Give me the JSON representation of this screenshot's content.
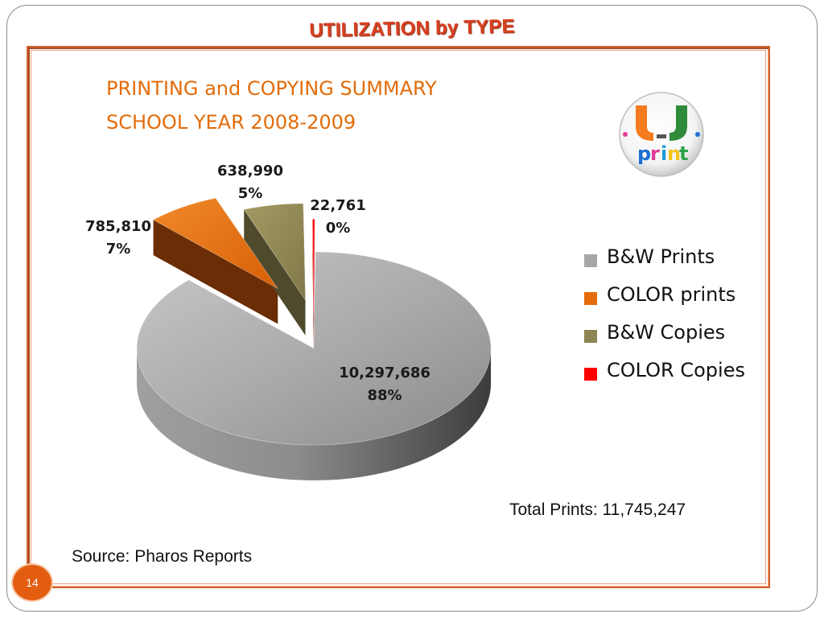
{
  "slide": {
    "title": "UTILIZATION by TYPE",
    "page_number": "14",
    "total_prints": "Total Prints:  11,745,247",
    "source": "Source: Pharos Reports"
  },
  "logo": {
    "text_top": "U",
    "text_bottom": "print",
    "icon": "u-print-logo"
  },
  "chart_data": {
    "type": "pie",
    "title_line1": "PRINTING and COPYING SUMMARY",
    "title_line2": "SCHOOL YEAR 2008-2009",
    "categories": [
      "B&W Prints",
      "COLOR prints",
      "B&W Copies",
      "COLOR Copies"
    ],
    "values": [
      10297686,
      785810,
      638990,
      22761
    ],
    "percent_labels": [
      "88%",
      "7%",
      "5%",
      "0%"
    ],
    "value_labels": [
      "10,297,686",
      "785,810",
      "638,990",
      "22,761"
    ],
    "colors": [
      "#a6a6a6",
      "#e46c0a",
      "#8c8452",
      "#ff0000"
    ],
    "legend_placement": "right",
    "exploded": true,
    "three_d": true
  }
}
